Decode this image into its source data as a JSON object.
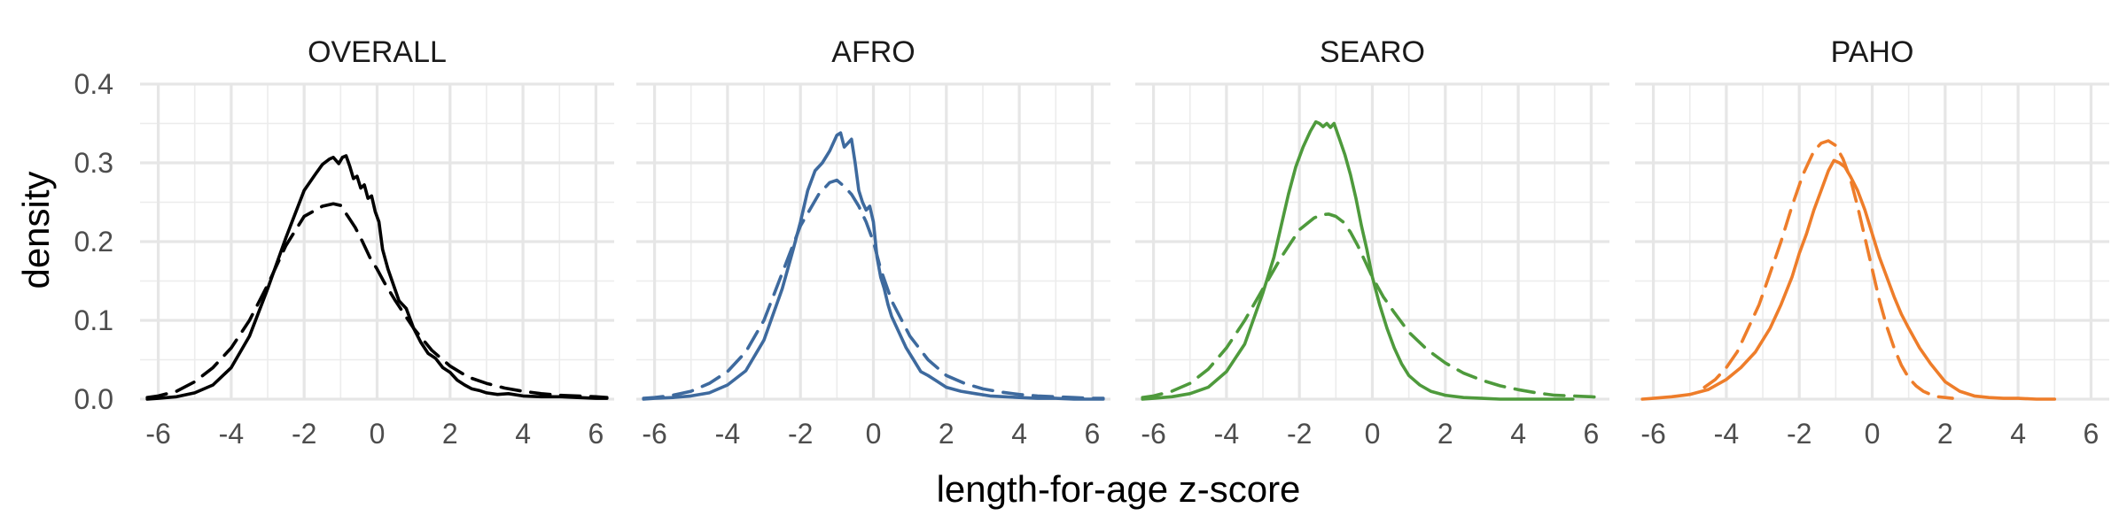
{
  "chart_data": {
    "type": "line",
    "xlabel": "length-for-age z-score",
    "ylabel": "density",
    "xlim": [
      -6.5,
      6.5
    ],
    "ylim": [
      0,
      0.4
    ],
    "xticks": [
      -6,
      -4,
      -2,
      0,
      2,
      4,
      6
    ],
    "yticks": [
      0.0,
      0.1,
      0.2,
      0.3,
      0.4
    ],
    "ytick_labels": [
      "0.0",
      "0.1",
      "0.2",
      "0.3",
      "0.4"
    ],
    "grid": true,
    "line_styles": [
      "solid",
      "dashed"
    ],
    "panels": [
      {
        "title": "OVERALL",
        "color": "#000000",
        "series": [
          {
            "style": "solid",
            "x": [
              -6.3,
              -6,
              -5.5,
              -5,
              -4.5,
              -4,
              -3.5,
              -3,
              -2.5,
              -2,
              -1.7,
              -1.5,
              -1.3,
              -1.2,
              -1.05,
              -0.95,
              -0.85,
              -0.75,
              -0.65,
              -0.55,
              -0.45,
              -0.35,
              -0.25,
              -0.15,
              -0.05,
              0.05,
              0.15,
              0.3,
              0.45,
              0.6,
              0.8,
              1.0,
              1.2,
              1.4,
              1.6,
              1.8,
              2.0,
              2.2,
              2.4,
              2.6,
              2.8,
              3.0,
              3.3,
              3.6,
              4.0,
              4.5,
              5.0,
              5.5,
              6.0,
              6.3
            ],
            "y": [
              0.0,
              0.001,
              0.003,
              0.008,
              0.018,
              0.04,
              0.08,
              0.14,
              0.205,
              0.265,
              0.285,
              0.298,
              0.305,
              0.307,
              0.299,
              0.307,
              0.309,
              0.296,
              0.28,
              0.283,
              0.268,
              0.272,
              0.255,
              0.258,
              0.238,
              0.225,
              0.19,
              0.165,
              0.145,
              0.125,
              0.115,
              0.09,
              0.072,
              0.058,
              0.052,
              0.04,
              0.034,
              0.024,
              0.018,
              0.013,
              0.011,
              0.008,
              0.006,
              0.007,
              0.004,
              0.003,
              0.003,
              0.002,
              0.001,
              0.001
            ]
          },
          {
            "style": "dashed",
            "x": [
              -6.3,
              -6,
              -5.5,
              -5,
              -4.5,
              -4,
              -3.5,
              -3,
              -2.5,
              -2,
              -1.5,
              -1.2,
              -1.0,
              -0.8,
              -0.6,
              -0.4,
              -0.2,
              0.0,
              0.2,
              0.5,
              1.0,
              1.5,
              2.0,
              2.5,
              3.0,
              3.5,
              4.0,
              4.5,
              5.0,
              5.5,
              6.0,
              6.3
            ],
            "y": [
              0.002,
              0.004,
              0.01,
              0.022,
              0.04,
              0.065,
              0.1,
              0.145,
              0.195,
              0.232,
              0.245,
              0.248,
              0.246,
              0.232,
              0.218,
              0.2,
              0.18,
              0.165,
              0.148,
              0.125,
              0.09,
              0.062,
              0.042,
              0.028,
              0.02,
              0.014,
              0.01,
              0.007,
              0.005,
              0.004,
              0.003,
              0.002
            ]
          }
        ]
      },
      {
        "title": "AFRO",
        "color": "#3E6A9E",
        "series": [
          {
            "style": "solid",
            "x": [
              -6.3,
              -6,
              -5.5,
              -5,
              -4.5,
              -4,
              -3.5,
              -3,
              -2.5,
              -2.2,
              -2.0,
              -1.8,
              -1.6,
              -1.4,
              -1.2,
              -1.0,
              -0.9,
              -0.8,
              -0.7,
              -0.6,
              -0.5,
              -0.4,
              -0.3,
              -0.2,
              -0.1,
              0.0,
              0.1,
              0.2,
              0.3,
              0.4,
              0.5,
              0.7,
              0.9,
              1.1,
              1.3,
              1.5,
              1.7,
              2.0,
              2.4,
              2.8,
              3.2,
              3.6,
              4.0,
              4.5,
              5.0,
              5.5,
              6.0,
              6.3
            ],
            "y": [
              0.0,
              0.001,
              0.002,
              0.004,
              0.008,
              0.018,
              0.036,
              0.075,
              0.14,
              0.19,
              0.225,
              0.265,
              0.29,
              0.3,
              0.315,
              0.335,
              0.338,
              0.32,
              0.325,
              0.33,
              0.3,
              0.265,
              0.25,
              0.24,
              0.245,
              0.225,
              0.18,
              0.155,
              0.14,
              0.12,
              0.105,
              0.085,
              0.065,
              0.05,
              0.035,
              0.03,
              0.024,
              0.015,
              0.01,
              0.007,
              0.004,
              0.003,
              0.002,
              0.001,
              0.001,
              0.0,
              0.0,
              0.0
            ]
          },
          {
            "style": "dashed",
            "x": [
              -6.3,
              -6,
              -5.5,
              -5,
              -4.5,
              -4,
              -3.5,
              -3,
              -2.5,
              -2,
              -1.5,
              -1.2,
              -1.0,
              -0.8,
              -0.6,
              -0.4,
              -0.2,
              0.0,
              0.2,
              0.5,
              1.0,
              1.5,
              2.0,
              2.5,
              3.0,
              3.5,
              4.0,
              4.5,
              5.0,
              5.5,
              6.0,
              6.3
            ],
            "y": [
              0.001,
              0.002,
              0.005,
              0.01,
              0.02,
              0.035,
              0.06,
              0.1,
              0.16,
              0.22,
              0.26,
              0.275,
              0.278,
              0.27,
              0.26,
              0.245,
              0.225,
              0.2,
              0.165,
              0.125,
              0.08,
              0.05,
              0.03,
              0.02,
              0.013,
              0.009,
              0.006,
              0.004,
              0.003,
              0.002,
              0.001,
              0.001
            ]
          }
        ]
      },
      {
        "title": "SEARO",
        "color": "#4E9A3C",
        "series": [
          {
            "style": "solid",
            "x": [
              -6.3,
              -6,
              -5.5,
              -5,
              -4.5,
              -4,
              -3.5,
              -3,
              -2.7,
              -2.5,
              -2.3,
              -2.1,
              -1.9,
              -1.7,
              -1.55,
              -1.45,
              -1.35,
              -1.25,
              -1.15,
              -1.05,
              -0.9,
              -0.75,
              -0.6,
              -0.45,
              -0.3,
              -0.15,
              0.0,
              0.2,
              0.4,
              0.6,
              0.8,
              1.0,
              1.3,
              1.6,
              2.0,
              2.5,
              3.0,
              3.5,
              4.0,
              4.5,
              5.0,
              5.5
            ],
            "y": [
              0.0,
              0.001,
              0.003,
              0.007,
              0.015,
              0.035,
              0.07,
              0.135,
              0.18,
              0.22,
              0.26,
              0.295,
              0.32,
              0.34,
              0.352,
              0.35,
              0.346,
              0.35,
              0.345,
              0.35,
              0.33,
              0.31,
              0.285,
              0.255,
              0.22,
              0.19,
              0.155,
              0.12,
              0.09,
              0.065,
              0.045,
              0.03,
              0.018,
              0.01,
              0.005,
              0.002,
              0.001,
              0.0,
              0.0,
              0.0,
              0.0,
              0.0
            ]
          },
          {
            "style": "dashed",
            "x": [
              -6.3,
              -6,
              -5.5,
              -5,
              -4.5,
              -4,
              -3.5,
              -3,
              -2.5,
              -2,
              -1.6,
              -1.4,
              -1.2,
              -1.0,
              -0.8,
              -0.6,
              -0.4,
              -0.2,
              0.0,
              0.3,
              0.6,
              1.0,
              1.5,
              2.0,
              2.5,
              3.0,
              3.5,
              4.0,
              4.5,
              5.0,
              5.5,
              6.0,
              6.3
            ],
            "y": [
              0.002,
              0.004,
              0.01,
              0.02,
              0.038,
              0.065,
              0.1,
              0.14,
              0.18,
              0.215,
              0.23,
              0.234,
              0.235,
              0.232,
              0.225,
              0.212,
              0.195,
              0.175,
              0.155,
              0.13,
              0.11,
              0.085,
              0.063,
              0.046,
              0.033,
              0.024,
              0.017,
              0.012,
              0.008,
              0.005,
              0.004,
              0.003,
              0.002
            ]
          }
        ]
      },
      {
        "title": "PAHO",
        "color": "#EE7D2A",
        "series": [
          {
            "style": "solid",
            "x": [
              -6.3,
              -6,
              -5.5,
              -5,
              -4.5,
              -4,
              -3.6,
              -3.2,
              -2.8,
              -2.5,
              -2.2,
              -2.0,
              -1.8,
              -1.6,
              -1.4,
              -1.2,
              -1.05,
              -0.9,
              -0.75,
              -0.6,
              -0.4,
              -0.2,
              0.0,
              0.2,
              0.4,
              0.6,
              0.8,
              1.0,
              1.3,
              1.6,
              2.0,
              2.4,
              2.8,
              3.2,
              3.6,
              4.0,
              4.5,
              5.0
            ],
            "y": [
              0.0,
              0.001,
              0.003,
              0.006,
              0.012,
              0.025,
              0.04,
              0.06,
              0.09,
              0.12,
              0.155,
              0.185,
              0.21,
              0.24,
              0.265,
              0.29,
              0.303,
              0.3,
              0.295,
              0.283,
              0.265,
              0.24,
              0.21,
              0.18,
              0.155,
              0.13,
              0.108,
              0.09,
              0.065,
              0.045,
              0.022,
              0.01,
              0.004,
              0.002,
              0.001,
              0.001,
              0.0,
              0.0
            ]
          },
          {
            "style": "dashed",
            "x": [
              -4.6,
              -4.3,
              -4.0,
              -3.7,
              -3.4,
              -3.1,
              -2.8,
              -2.5,
              -2.2,
              -1.9,
              -1.6,
              -1.4,
              -1.2,
              -1.0,
              -0.8,
              -0.6,
              -0.4,
              -0.2,
              0.0,
              0.2,
              0.4,
              0.6,
              0.8,
              1.0,
              1.2,
              1.4,
              1.6,
              1.8,
              2.0,
              2.2
            ],
            "y": [
              0.015,
              0.025,
              0.04,
              0.06,
              0.09,
              0.12,
              0.16,
              0.2,
              0.245,
              0.285,
              0.315,
              0.325,
              0.328,
              0.322,
              0.305,
              0.28,
              0.245,
              0.205,
              0.165,
              0.125,
              0.092,
              0.065,
              0.043,
              0.027,
              0.017,
              0.01,
              0.006,
              0.003,
              0.002,
              0.001
            ]
          }
        ]
      }
    ]
  }
}
